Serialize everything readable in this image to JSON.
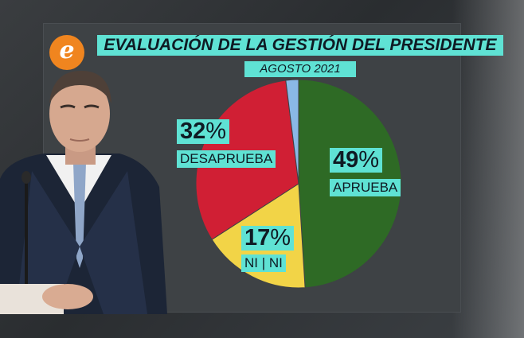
{
  "title": "EVALUACIÓN DE LA GESTIÓN DEL PRESIDENTE",
  "subtitle": "AGOSTO 2021",
  "logo_letter": "e",
  "colors": {
    "aprueba": "#2e6a25",
    "ni_ni": "#f2d447",
    "desaprueba": "#d01f34",
    "ns_nc": "#8ab8e6",
    "label_bg": "#5fe2d4"
  },
  "labels": {
    "aprueba": {
      "pct": "49",
      "sym": "%",
      "name": "APRUEBA"
    },
    "ni_ni": {
      "pct": "17",
      "sym": "%",
      "name": "NI | NI"
    },
    "desaprueba": {
      "pct": "32",
      "sym": "%",
      "name": "DESAPRUEBA"
    }
  },
  "chart_data": {
    "type": "pie",
    "title": "EVALUACIÓN DE LA GESTIÓN DEL PRESIDENTE",
    "subtitle": "AGOSTO 2021",
    "categories": [
      "APRUEBA",
      "NI | NI",
      "DESAPRUEBA",
      ""
    ],
    "values": [
      49,
      17,
      32,
      2
    ],
    "colors": [
      "#2e6a25",
      "#f2d447",
      "#d01f34",
      "#8ab8e6"
    ],
    "start": "top",
    "direction": "clockwise"
  }
}
